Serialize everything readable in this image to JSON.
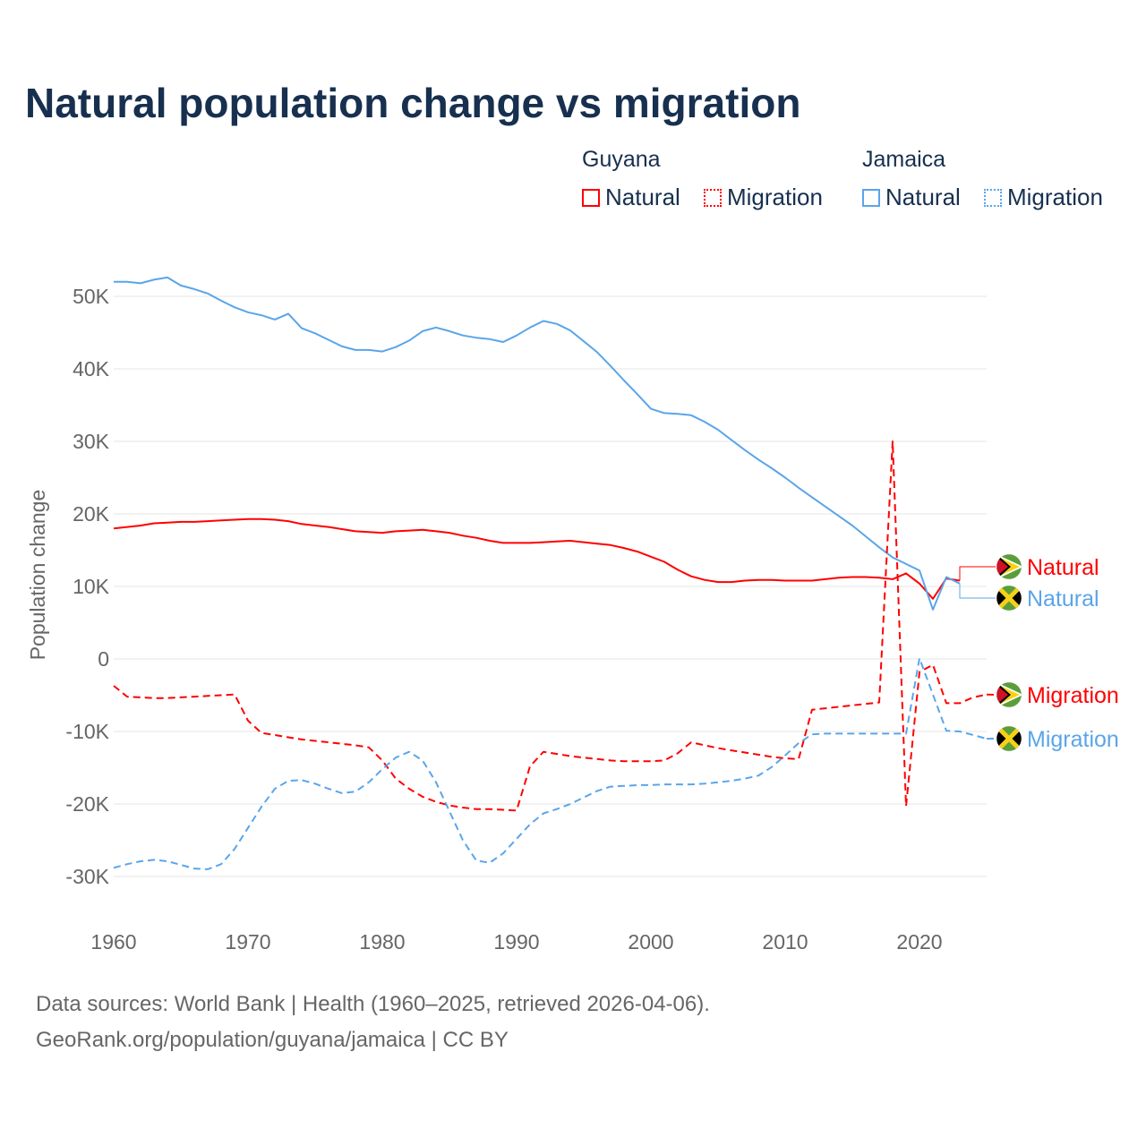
{
  "title": "Natural population change vs migration",
  "legend": {
    "groups": [
      {
        "name": "Guyana",
        "items": [
          "Natural",
          "Migration"
        ]
      },
      {
        "name": "Jamaica",
        "items": [
          "Natural",
          "Migration"
        ]
      }
    ]
  },
  "colors": {
    "guyana": "#ff0000",
    "jamaica": "#5aa5ea"
  },
  "footer": {
    "line1": "Data sources: World Bank | Health (1960–2025, retrieved 2026-04-06).",
    "line2": "GeoRank.org/population/guyana/jamaica | CC BY"
  },
  "chart_data": {
    "type": "line",
    "title": "Natural population change vs migration",
    "xlabel": "",
    "ylabel": "Population change",
    "xlim": [
      1960,
      2025
    ],
    "ylim": [
      -35000,
      55000
    ],
    "yticks": [
      -30000,
      -20000,
      -10000,
      0,
      10000,
      20000,
      30000,
      40000,
      50000
    ],
    "ytick_labels": [
      "-30K",
      "-20K",
      "-10K",
      "0",
      "10K",
      "20K",
      "30K",
      "40K",
      "50K"
    ],
    "xticks": [
      1960,
      1970,
      1980,
      1990,
      2000,
      2010,
      2020
    ],
    "grid": true,
    "series": [
      {
        "name": "Natural",
        "country": "Guyana",
        "color": "#ff0000",
        "dash": false,
        "start": 1960,
        "values": [
          18000,
          18200,
          18400,
          18700,
          18800,
          18900,
          18900,
          19000,
          19100,
          19200,
          19300,
          19300,
          19200,
          19000,
          18600,
          18400,
          18200,
          17900,
          17600,
          17500,
          17400,
          17600,
          17700,
          17800,
          17600,
          17400,
          17000,
          16700,
          16300,
          16000,
          16000,
          16000,
          16100,
          16200,
          16300,
          16100,
          15900,
          15700,
          15300,
          14800,
          14100,
          13400,
          12300,
          11400,
          10900,
          10600,
          10600,
          10800,
          10900,
          10900,
          10800,
          10800,
          10800,
          11000,
          11200,
          11300,
          11300,
          11200,
          11000,
          11800,
          10400,
          8300,
          11100,
          10800
        ]
      },
      {
        "name": "Natural",
        "country": "Jamaica",
        "color": "#5aa5ea",
        "dash": false,
        "start": 1960,
        "values": [
          52000,
          52000,
          51800,
          52300,
          52600,
          51500,
          51000,
          50400,
          49400,
          48500,
          47800,
          47400,
          46800,
          47600,
          45600,
          44900,
          44000,
          43100,
          42600,
          42600,
          42400,
          43000,
          43900,
          45200,
          45700,
          45200,
          44600,
          44300,
          44100,
          43700,
          44600,
          45700,
          46600,
          46200,
          45300,
          43800,
          42300,
          40400,
          38400,
          36500,
          34500,
          33900,
          33800,
          33600,
          32700,
          31600,
          30200,
          28800,
          27500,
          26300,
          25000,
          23600,
          22300,
          21000,
          19700,
          18400,
          16900,
          15400,
          14000,
          13100,
          12200,
          6800,
          11300,
          10400
        ]
      },
      {
        "name": "Migration",
        "country": "Guyana",
        "color": "#ff0000",
        "dash": true,
        "start": 1960,
        "values": [
          -3700,
          -5200,
          -5300,
          -5400,
          -5400,
          -5300,
          -5200,
          -5100,
          -5000,
          -4900,
          -8500,
          -10200,
          -10500,
          -10800,
          -11100,
          -11300,
          -11500,
          -11700,
          -11900,
          -12200,
          -14000,
          -16500,
          -17900,
          -19000,
          -19700,
          -20200,
          -20500,
          -20700,
          -20700,
          -20800,
          -20900,
          -14800,
          -12800,
          -13100,
          -13400,
          -13600,
          -13800,
          -14000,
          -14100,
          -14100,
          -14100,
          -14000,
          -13000,
          -11500,
          -11900,
          -12300,
          -12600,
          -12900,
          -13200,
          -13500,
          -13700,
          -13800,
          -7000,
          -6800,
          -6600,
          -6400,
          -6200,
          -6000,
          30000,
          -20300,
          -1800,
          -800,
          -6100,
          -6100,
          -5300,
          -4900
        ]
      },
      {
        "name": "Migration",
        "country": "Jamaica",
        "color": "#5aa5ea",
        "dash": true,
        "start": 1960,
        "values": [
          -28800,
          -28300,
          -27900,
          -27700,
          -27900,
          -28400,
          -28900,
          -29000,
          -28300,
          -26200,
          -23300,
          -20400,
          -17900,
          -16800,
          -16700,
          -17200,
          -17900,
          -18500,
          -18300,
          -17000,
          -15200,
          -13600,
          -12800,
          -14000,
          -17000,
          -21000,
          -25000,
          -27800,
          -28100,
          -26800,
          -24800,
          -22800,
          -21300,
          -20700,
          -20000,
          -19100,
          -18200,
          -17600,
          -17500,
          -17400,
          -17400,
          -17300,
          -17300,
          -17300,
          -17200,
          -17000,
          -16800,
          -16500,
          -16100,
          -14900,
          -13300,
          -11600,
          -10400,
          -10300,
          -10300,
          -10300,
          -10300,
          -10300,
          -10300,
          -10300,
          100,
          -4900,
          -9900,
          -10000,
          -10500,
          -11000
        ]
      }
    ],
    "end_labels": [
      "Natural",
      "Natural",
      "Migration",
      "Migration"
    ]
  }
}
